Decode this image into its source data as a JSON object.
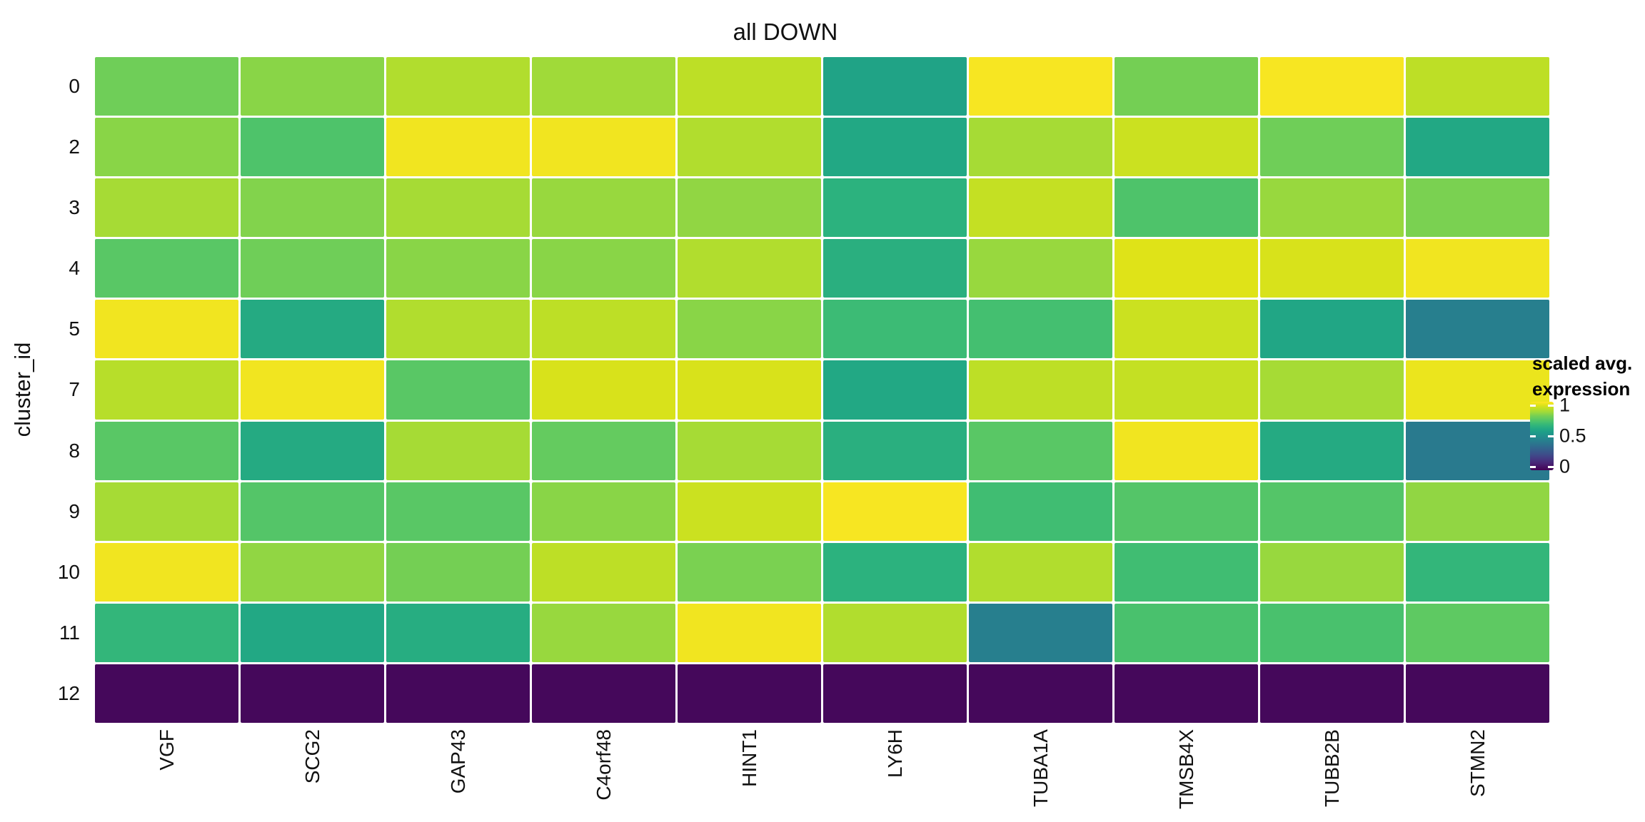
{
  "chart_data": {
    "type": "heatmap",
    "title": "all DOWN",
    "ylabel": "cluster_id",
    "rows": [
      "0",
      "2",
      "3",
      "4",
      "5",
      "7",
      "8",
      "9",
      "10",
      "11",
      "12"
    ],
    "columns": [
      "VGF",
      "SCG2",
      "GAP43",
      "C4orf48",
      "HINT1",
      "LY6H",
      "TUBA1A",
      "TMSB4X",
      "TUBB2B",
      "STMN2"
    ],
    "values": [
      [
        0.78,
        0.82,
        0.88,
        0.85,
        0.9,
        0.58,
        0.99,
        0.79,
        0.99,
        0.9
      ],
      [
        0.82,
        0.72,
        0.98,
        0.98,
        0.88,
        0.6,
        0.86,
        0.92,
        0.78,
        0.6
      ],
      [
        0.86,
        0.81,
        0.86,
        0.84,
        0.83,
        0.64,
        0.91,
        0.72,
        0.84,
        0.8
      ],
      [
        0.74,
        0.78,
        0.82,
        0.82,
        0.88,
        0.63,
        0.84,
        0.95,
        0.94,
        0.98
      ],
      [
        0.98,
        0.61,
        0.88,
        0.9,
        0.82,
        0.68,
        0.7,
        0.92,
        0.59,
        0.43
      ],
      [
        0.89,
        0.98,
        0.74,
        0.94,
        0.94,
        0.6,
        0.9,
        0.91,
        0.86,
        0.97
      ],
      [
        0.74,
        0.61,
        0.86,
        0.76,
        0.86,
        0.63,
        0.74,
        0.98,
        0.61,
        0.41
      ],
      [
        0.86,
        0.73,
        0.74,
        0.82,
        0.92,
        0.99,
        0.69,
        0.73,
        0.73,
        0.83
      ],
      [
        0.98,
        0.83,
        0.79,
        0.9,
        0.8,
        0.64,
        0.88,
        0.69,
        0.84,
        0.66
      ],
      [
        0.66,
        0.6,
        0.62,
        0.84,
        0.98,
        0.88,
        0.43,
        0.71,
        0.71,
        0.75
      ],
      [
        0.02,
        0.02,
        0.02,
        0.02,
        0.02,
        0.02,
        0.02,
        0.02,
        0.02,
        0.02
      ]
    ],
    "value_range": [
      0,
      1
    ],
    "colormap": "viridis",
    "colors": {
      "min": "#440154",
      "mid": "#21918c",
      "max": "#fde725",
      "background": "#ffffff",
      "tile_border": "#ffffff",
      "text": "#111111"
    },
    "legend": {
      "position": "right",
      "title_lines": [
        "scaled avg.",
        "expression"
      ],
      "ticks": [
        "1",
        "0.5",
        "0"
      ],
      "tick_values": [
        1,
        0.5,
        0
      ]
    },
    "grid": false
  }
}
